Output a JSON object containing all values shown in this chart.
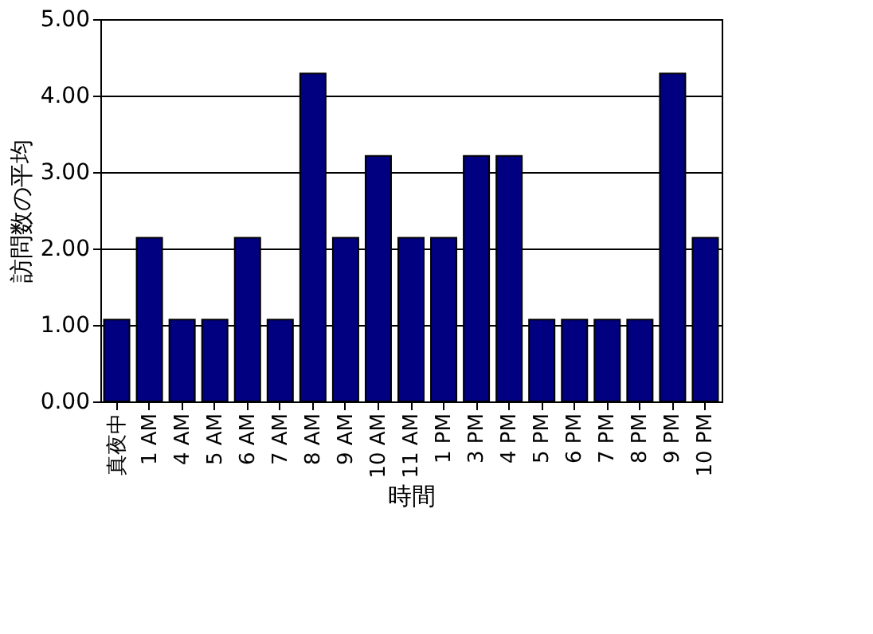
{
  "chart_data": {
    "type": "bar",
    "xlabel": "時間",
    "ylabel": "訪問数の平均",
    "categories": [
      "真夜中",
      "1 AM",
      "4 AM",
      "5 AM",
      "6 AM",
      "7 AM",
      "8 AM",
      "9 AM",
      "10 AM",
      "11 AM",
      "1 PM",
      "3 PM",
      "4 PM",
      "5 PM",
      "6 PM",
      "7 PM",
      "8 PM",
      "9 PM",
      "10 PM"
    ],
    "values": [
      1.07,
      2.14,
      1.07,
      1.07,
      2.14,
      1.07,
      4.29,
      2.14,
      3.21,
      2.14,
      2.14,
      3.21,
      3.21,
      1.07,
      1.07,
      1.07,
      1.07,
      4.29,
      2.14
    ],
    "color": "#000080",
    "ylim": [
      0,
      5
    ],
    "yticks": [
      {
        "value": 0,
        "label": "0.00"
      },
      {
        "value": 1,
        "label": "1.00"
      },
      {
        "value": 2,
        "label": "2.00"
      },
      {
        "value": 3,
        "label": "3.00"
      },
      {
        "value": 4,
        "label": "4.00"
      },
      {
        "value": 5,
        "label": "5.00"
      }
    ],
    "grid": "y"
  }
}
